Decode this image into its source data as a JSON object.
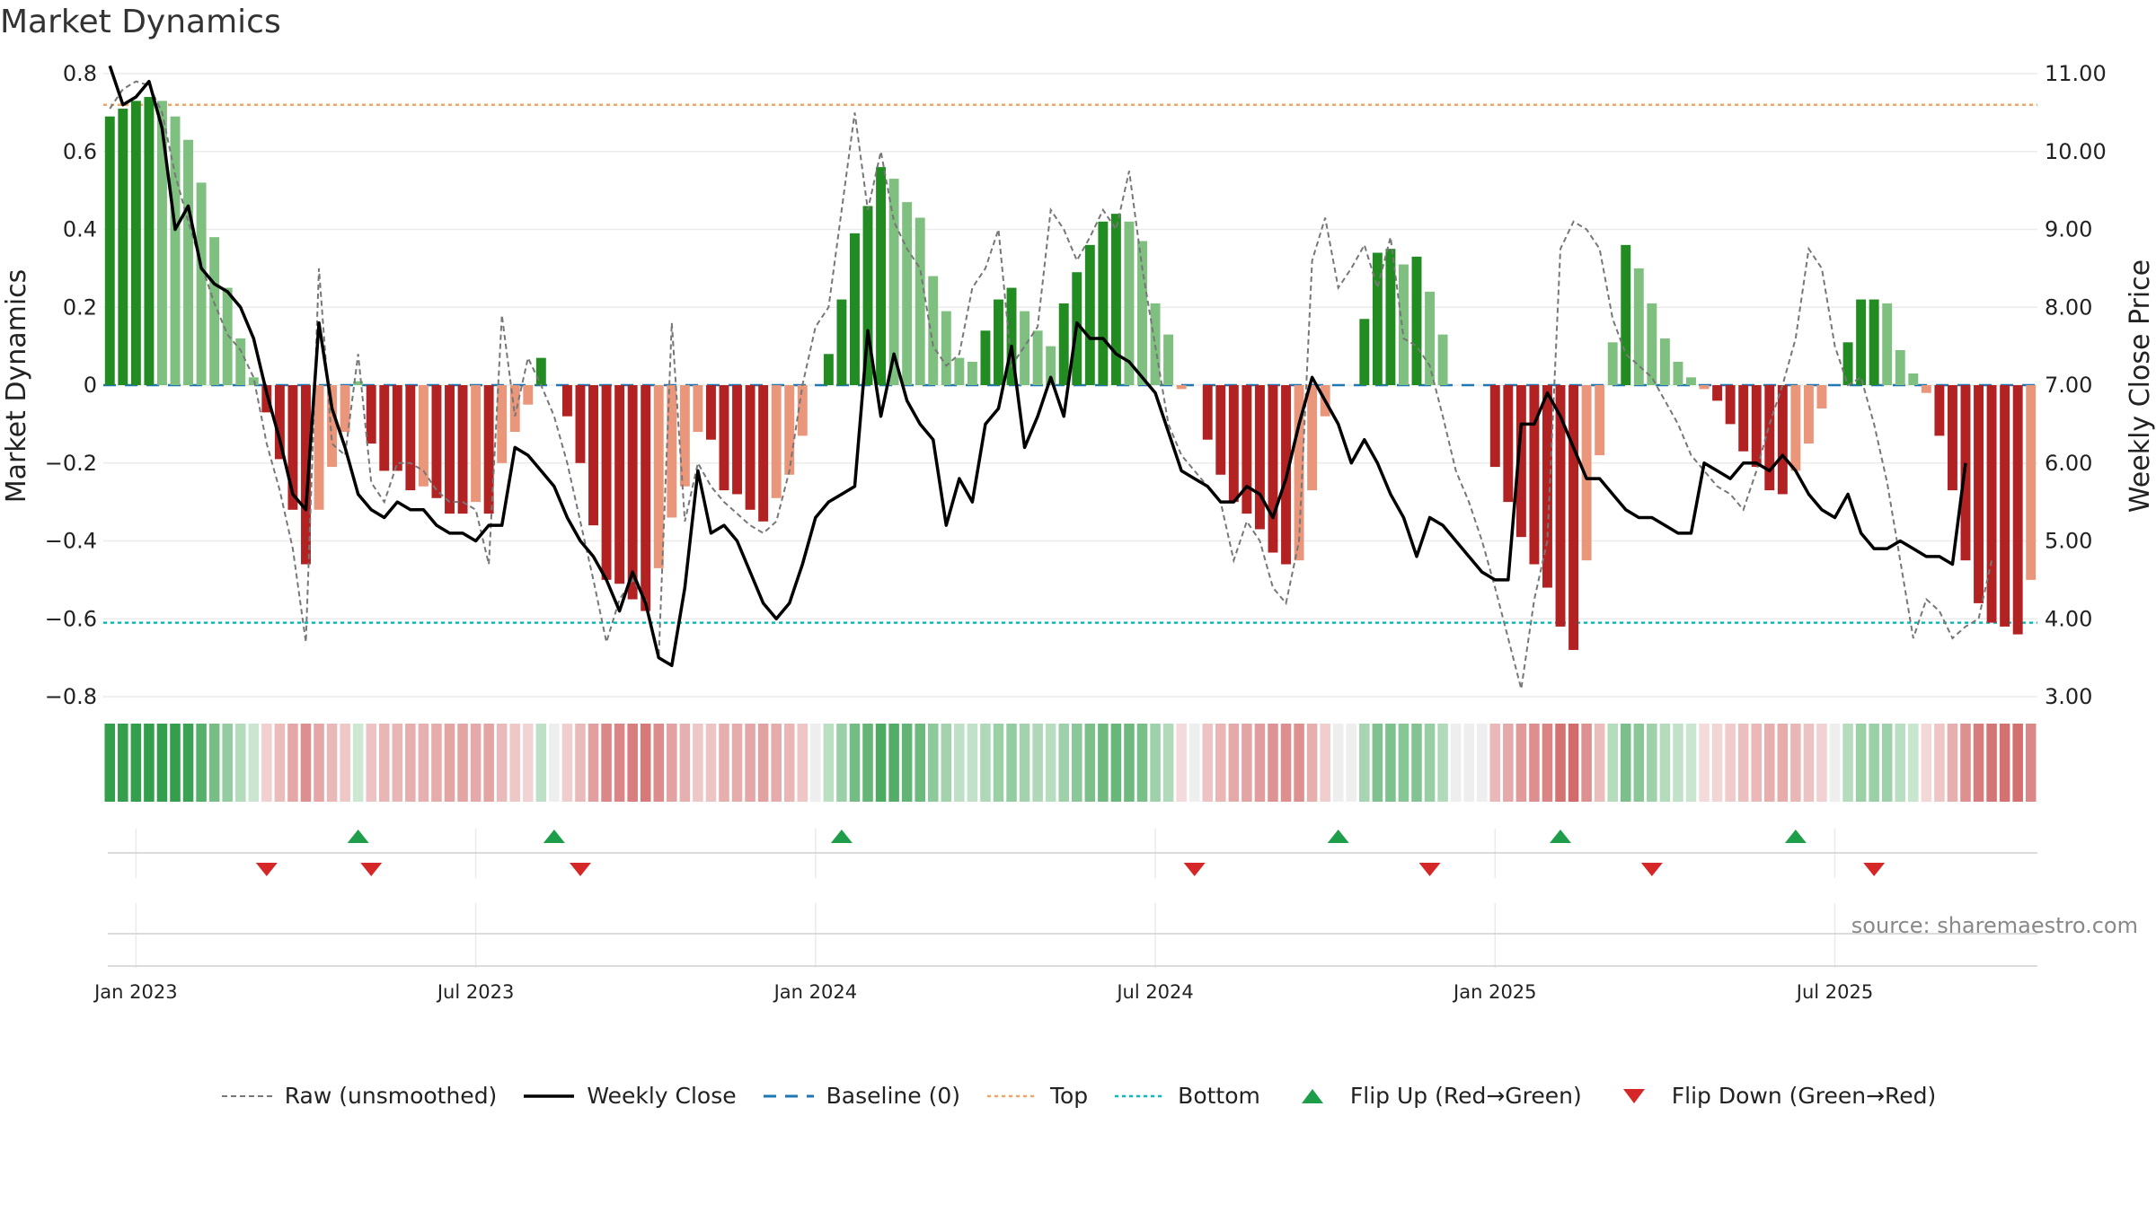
{
  "title": "Market Dynamics",
  "source": "source: sharemaestro.com",
  "colors": {
    "strong_green": "#228B22",
    "light_green": "#7FBF7F",
    "strong_red": "#B22222",
    "light_red": "#E9967A",
    "top": "#F4A460",
    "bottom": "#00BFBF",
    "baseline": "#1F77B4",
    "raw": "#777777",
    "close": "#000000",
    "flip_up": "#1E9E4A",
    "flip_down": "#D62728"
  },
  "legend": [
    {
      "key": "raw",
      "label": "Raw (unsmoothed)"
    },
    {
      "key": "close",
      "label": "Weekly Close"
    },
    {
      "key": "baseline",
      "label": "Baseline (0)"
    },
    {
      "key": "top",
      "label": "Top"
    },
    {
      "key": "bottom",
      "label": "Bottom"
    },
    {
      "key": "flip_up",
      "label": "Flip Up (Red→Green)"
    },
    {
      "key": "flip_down",
      "label": "Flip Down (Green→Red)"
    }
  ],
  "chart_data": {
    "type": "bar",
    "title": "Market Dynamics",
    "ylabel": "Market Dynamics",
    "y2label": "Weekly Close Price",
    "ylim": [
      -0.8,
      0.8
    ],
    "y2lim": [
      3.0,
      11.0
    ],
    "yticks": [
      0.8,
      0.6,
      0.4,
      0.2,
      0,
      -0.2,
      -0.4,
      -0.6,
      -0.8
    ],
    "ytick_labels": [
      "0.8",
      "0.6",
      "0.4",
      "0.2",
      "0",
      "−0.2",
      "−0.4",
      "−0.6",
      "−0.8"
    ],
    "y2ticks": [
      11,
      10,
      9,
      8,
      7,
      6,
      5,
      4,
      3
    ],
    "y2tick_labels": [
      "11.00",
      "10.00",
      "9.00",
      "8.00",
      "7.00",
      "6.00",
      "5.00",
      "4.00",
      "3.00"
    ],
    "top_level": 0.72,
    "bottom_level": -0.61,
    "xticks": [
      {
        "label": "Jan 2023",
        "week": 2
      },
      {
        "label": "Jul 2023",
        "week": 28
      },
      {
        "label": "Jan 2024",
        "week": 54
      },
      {
        "label": "Jul 2024",
        "week": 80
      },
      {
        "label": "Jan 2025",
        "week": 106
      },
      {
        "label": "Jul 2025",
        "week": 132
      }
    ],
    "dynamics": [
      0.69,
      0.71,
      0.73,
      0.74,
      0.73,
      0.69,
      0.63,
      0.52,
      0.38,
      0.25,
      0.12,
      0.02,
      -0.07,
      -0.19,
      -0.32,
      -0.46,
      -0.32,
      -0.21,
      -0.12,
      0.01,
      -0.15,
      -0.22,
      -0.22,
      -0.27,
      -0.26,
      -0.29,
      -0.33,
      -0.33,
      -0.3,
      -0.33,
      -0.2,
      -0.12,
      -0.05,
      0.07,
      0.0,
      -0.08,
      -0.2,
      -0.36,
      -0.5,
      -0.51,
      -0.55,
      -0.58,
      -0.47,
      -0.34,
      -0.26,
      -0.12,
      -0.14,
      -0.27,
      -0.28,
      -0.32,
      -0.35,
      -0.29,
      -0.23,
      -0.13,
      0.0,
      0.08,
      0.22,
      0.39,
      0.46,
      0.56,
      0.53,
      0.47,
      0.43,
      0.28,
      0.19,
      0.07,
      0.06,
      0.14,
      0.22,
      0.25,
      0.19,
      0.14,
      0.1,
      0.21,
      0.29,
      0.36,
      0.42,
      0.44,
      0.42,
      0.37,
      0.21,
      0.13,
      -0.01,
      0.0,
      -0.14,
      -0.23,
      -0.3,
      -0.33,
      -0.37,
      -0.43,
      -0.46,
      -0.45,
      -0.27,
      -0.08,
      0.0,
      0.0,
      0.17,
      0.34,
      0.35,
      0.31,
      0.33,
      0.24,
      0.13,
      0.0,
      0.0,
      0.0,
      -0.21,
      -0.3,
      -0.39,
      -0.46,
      -0.52,
      -0.62,
      -0.68,
      -0.45,
      -0.18,
      0.11,
      0.36,
      0.3,
      0.21,
      0.12,
      0.06,
      0.02,
      -0.01,
      -0.04,
      -0.1,
      -0.17,
      -0.21,
      -0.27,
      -0.28,
      -0.22,
      -0.15,
      -0.06,
      0.0,
      0.11,
      0.22,
      0.22,
      0.21,
      0.09,
      0.03,
      -0.02,
      -0.13,
      -0.27,
      -0.45,
      -0.56,
      -0.61,
      -0.62,
      -0.64,
      -0.5
    ],
    "raw": [
      0.71,
      0.76,
      0.78,
      0.77,
      0.7,
      0.54,
      0.42,
      0.31,
      0.21,
      0.13,
      0.09,
      0.02,
      -0.15,
      -0.27,
      -0.42,
      -0.66,
      0.3,
      -0.15,
      -0.18,
      0.08,
      -0.25,
      -0.3,
      -0.2,
      -0.2,
      -0.22,
      -0.27,
      -0.3,
      -0.3,
      -0.32,
      -0.46,
      0.18,
      -0.08,
      0.07,
      0.0,
      -0.08,
      -0.2,
      -0.35,
      -0.5,
      -0.66,
      -0.55,
      -0.5,
      -0.55,
      -0.7,
      0.16,
      -0.35,
      -0.2,
      -0.26,
      -0.3,
      -0.33,
      -0.36,
      -0.38,
      -0.35,
      -0.22,
      0.0,
      0.15,
      0.2,
      0.45,
      0.7,
      0.45,
      0.6,
      0.42,
      0.35,
      0.3,
      0.1,
      0.05,
      0.08,
      0.25,
      0.3,
      0.4,
      0.05,
      0.1,
      0.15,
      0.45,
      0.4,
      0.32,
      0.38,
      0.45,
      0.4,
      0.55,
      0.3,
      0.1,
      -0.1,
      -0.18,
      -0.22,
      -0.26,
      -0.3,
      -0.45,
      -0.35,
      -0.4,
      -0.52,
      -0.56,
      -0.4,
      0.32,
      0.43,
      0.25,
      0.3,
      0.36,
      0.25,
      0.38,
      0.12,
      0.1,
      0.05,
      -0.08,
      -0.22,
      -0.3,
      -0.4,
      -0.52,
      -0.65,
      -0.78,
      -0.55,
      -0.4,
      0.35,
      0.42,
      0.4,
      0.35,
      0.17,
      0.08,
      0.05,
      0.02,
      -0.04,
      -0.1,
      -0.18,
      -0.22,
      -0.26,
      -0.28,
      -0.32,
      -0.22,
      -0.1,
      0.0,
      0.12,
      0.35,
      0.3,
      0.1,
      0.0,
      0.02,
      -0.1,
      -0.25,
      -0.45,
      -0.65,
      -0.55,
      -0.58,
      -0.65,
      -0.62,
      -0.6,
      -0.45
    ],
    "close": [
      11.1,
      10.6,
      10.7,
      10.9,
      10.3,
      9.0,
      9.3,
      8.5,
      8.3,
      8.2,
      8.0,
      7.6,
      6.9,
      6.3,
      5.6,
      5.4,
      7.8,
      6.7,
      6.2,
      5.6,
      5.4,
      5.3,
      5.5,
      5.4,
      5.4,
      5.2,
      5.1,
      5.1,
      5.0,
      5.2,
      5.2,
      6.2,
      6.1,
      5.9,
      5.7,
      5.3,
      5.0,
      4.8,
      4.5,
      4.1,
      4.6,
      4.2,
      3.5,
      3.4,
      4.4,
      5.9,
      5.1,
      5.2,
      5.0,
      4.6,
      4.2,
      4.0,
      4.2,
      4.7,
      5.3,
      5.5,
      5.6,
      5.7,
      7.7,
      6.6,
      7.4,
      6.8,
      6.5,
      6.3,
      5.2,
      5.8,
      5.5,
      6.5,
      6.7,
      7.5,
      6.2,
      6.6,
      7.1,
      6.6,
      7.8,
      7.6,
      7.6,
      7.4,
      7.3,
      7.1,
      6.9,
      6.4,
      5.9,
      5.8,
      5.7,
      5.5,
      5.5,
      5.7,
      5.6,
      5.3,
      5.8,
      6.5,
      7.1,
      6.8,
      6.5,
      6.0,
      6.3,
      6.0,
      5.6,
      5.3,
      4.8,
      5.3,
      5.2,
      5.0,
      4.8,
      4.6,
      4.5,
      4.5,
      6.5,
      6.5,
      6.9,
      6.6,
      6.2,
      5.8,
      5.8,
      5.6,
      5.4,
      5.3,
      5.3,
      5.2,
      5.1,
      5.1,
      6.0,
      5.9,
      5.8,
      6.0,
      6.0,
      5.9,
      6.1,
      5.9,
      5.6,
      5.4,
      5.3,
      5.6,
      5.1,
      4.9,
      4.9,
      5.0,
      4.9,
      4.8,
      4.8,
      4.7,
      6.0
    ],
    "flip_up_weeks": [
      19,
      34,
      56,
      94,
      111,
      129
    ],
    "flip_down_weeks": [
      12,
      20,
      36,
      83,
      101,
      118,
      135
    ]
  }
}
